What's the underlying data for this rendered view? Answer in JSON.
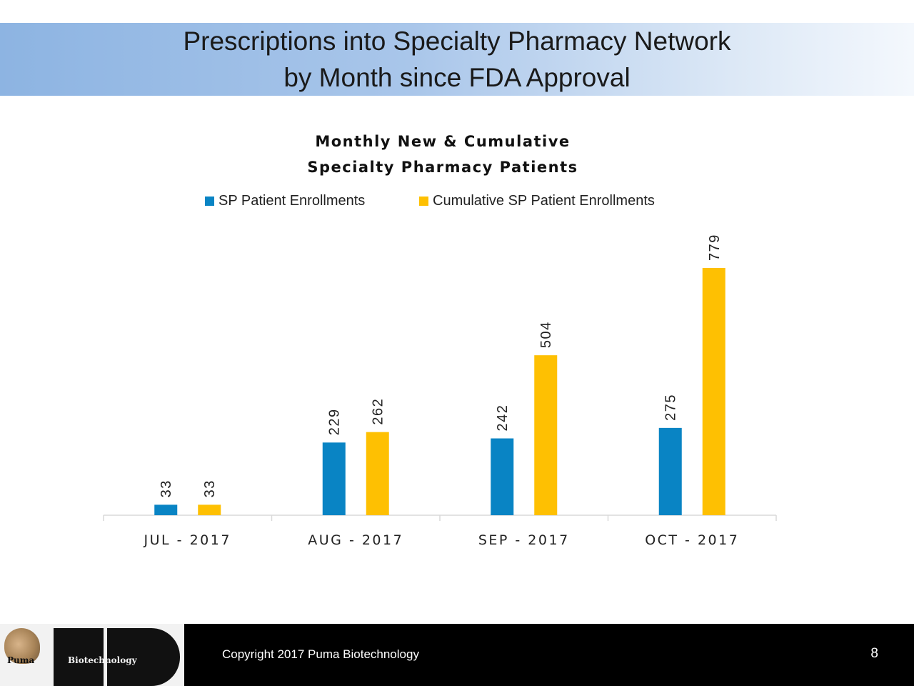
{
  "slide": {
    "title_line1": "Prescriptions into Specialty Pharmacy Network",
    "title_line2": "by Month since FDA Approval"
  },
  "chart_data": {
    "type": "bar",
    "title_line1": "Monthly New & Cumulative",
    "title_line2": "Specialty Pharmacy Patients",
    "categories": [
      "JUL - 2017",
      "AUG - 2017",
      "SEP - 2017",
      "OCT - 2017"
    ],
    "series": [
      {
        "name": "SP Patient Enrollments",
        "color": "#0984c4",
        "values": [
          33,
          229,
          242,
          275
        ]
      },
      {
        "name": "Cumulative SP Patient Enrollments",
        "color": "#fec002",
        "values": [
          33,
          262,
          504,
          779
        ]
      }
    ],
    "ylim": [
      0,
      779
    ],
    "grid": false,
    "data_labels": true,
    "legend_position": "top"
  },
  "footer": {
    "logo_text_left": "Puma",
    "logo_text_right": "Biotechnology",
    "copyright": "Copyright 2017 Puma Biotechnology",
    "page_number": "8",
    "background": "#000000"
  }
}
